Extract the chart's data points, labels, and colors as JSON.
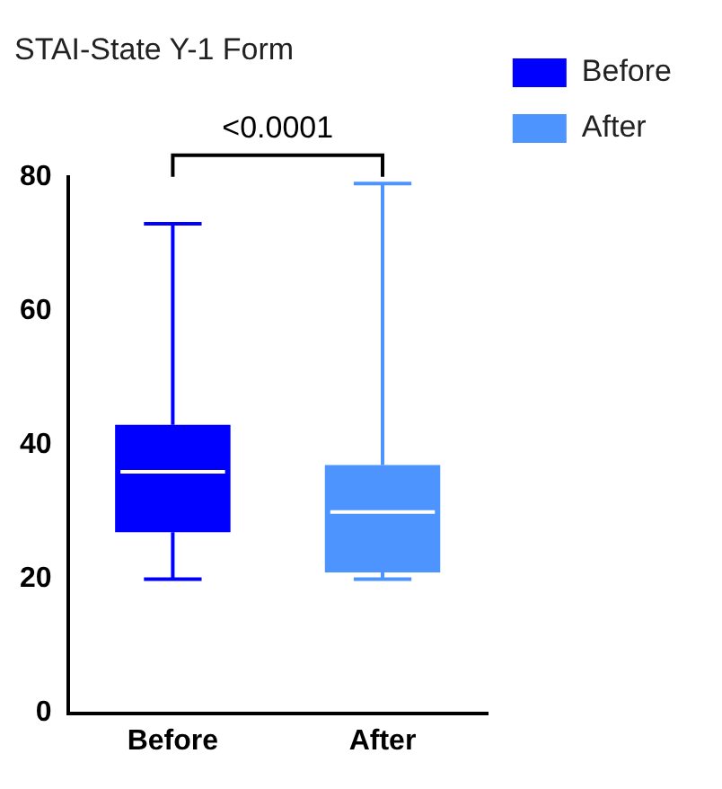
{
  "chart_data": {
    "type": "box",
    "title": "STAI-State Y-1 Form",
    "categories": [
      "Before",
      "After"
    ],
    "series": [
      {
        "name": "Before",
        "color": "#0000ff",
        "boxes": [
          {
            "low": 20,
            "q1": 27,
            "median": 36,
            "q3": 43,
            "high": 73
          },
          null
        ]
      },
      {
        "name": "After",
        "color": "#4d94ff",
        "boxes": [
          null,
          {
            "low": 20,
            "q1": 21,
            "median": 30,
            "q3": 37,
            "high": 79
          }
        ]
      }
    ],
    "ylim": [
      0,
      80
    ],
    "yticks": [
      0,
      20,
      40,
      60,
      80
    ],
    "grid": false,
    "legend": "top right",
    "annotations": [
      "<0.0001"
    ]
  }
}
